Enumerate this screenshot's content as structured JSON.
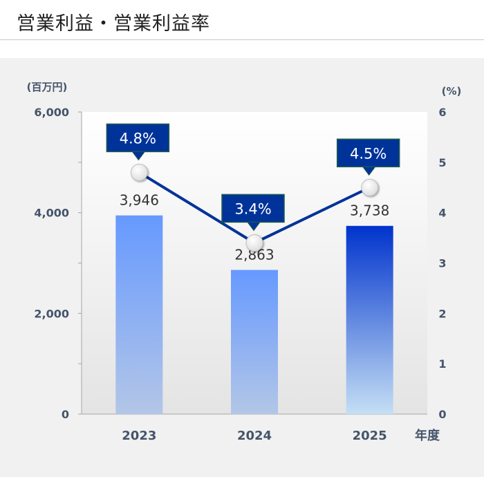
{
  "page": {
    "title": "営業利益・営業利益率"
  },
  "chart_data": {
    "type": "bar",
    "title": "営業利益・営業利益率",
    "categories": [
      "2023",
      "2024",
      "2025"
    ],
    "x_unit_label": "年度",
    "y_left": {
      "unit_label": "(百万円)",
      "ylim": [
        0,
        6000
      ],
      "tick_labels": [
        "0",
        "2,000",
        "4,000",
        "6,000"
      ],
      "ticks": [
        0,
        2000,
        4000,
        6000
      ]
    },
    "y_right": {
      "unit_label": "(%)",
      "ylim": [
        0,
        6
      ],
      "tick_labels": [
        "0",
        "1",
        "2",
        "3",
        "4",
        "5",
        "6"
      ],
      "ticks": [
        0,
        1,
        2,
        3,
        4,
        5,
        6
      ]
    },
    "series": [
      {
        "type": "bar",
        "axis": "left",
        "values": [
          3946,
          2863,
          3738
        ],
        "value_labels": [
          "3,946",
          "2,863",
          "3,738"
        ]
      },
      {
        "type": "line",
        "axis": "right",
        "values": [
          4.8,
          3.4,
          4.5
        ],
        "value_labels": [
          "4.8%",
          "3.4%",
          "4.5%"
        ]
      }
    ],
    "grid": false,
    "colors": {
      "bar_past_top": "#6699ff",
      "bar_past_bottom": "#b3c6e7",
      "bar_current_top": "#0033cc",
      "bar_current_bottom": "#c5dff5",
      "line": "#003399",
      "callout_fill": "#003399",
      "callout_border": "#1e5c4a"
    }
  }
}
